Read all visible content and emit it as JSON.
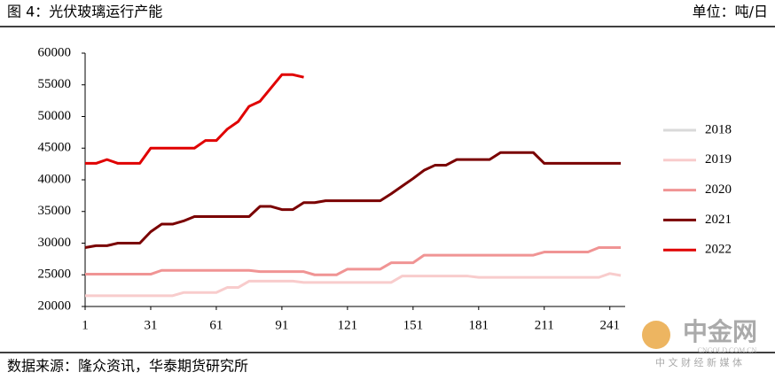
{
  "header": {
    "title": "图 4：光伏玻璃运行产能",
    "unit": "单位：吨/日"
  },
  "footer": {
    "source": "数据来源：隆众资讯，华泰期货研究所"
  },
  "watermark": {
    "name": "中金网",
    "domain": "CNGOLD.COM.CN",
    "slogan": "中 文 财 经 新 媒 体"
  },
  "chart_data": {
    "type": "line",
    "x": [
      1,
      6,
      11,
      16,
      21,
      26,
      31,
      36,
      41,
      46,
      51,
      56,
      61,
      66,
      71,
      76,
      81,
      86,
      91,
      96,
      101,
      106,
      111,
      116,
      121,
      126,
      131,
      136,
      141,
      146,
      151,
      156,
      161,
      166,
      171,
      176,
      181,
      186,
      191,
      196,
      201,
      206,
      211,
      216,
      221,
      226,
      231,
      236,
      241,
      246
    ],
    "xlim": [
      1,
      248
    ],
    "xticks": [
      1,
      31,
      61,
      91,
      121,
      151,
      181,
      211,
      241
    ],
    "ylim": [
      20000,
      60000
    ],
    "yticks": [
      20000,
      25000,
      30000,
      35000,
      40000,
      45000,
      50000,
      55000,
      60000
    ],
    "legend": "right",
    "series": [
      {
        "name": "2018",
        "color": "#d9d9d9",
        "values": [
          null,
          null,
          null,
          null,
          null,
          null,
          null,
          null,
          null,
          null,
          null,
          null,
          null,
          null,
          null,
          null,
          null,
          null,
          null,
          null,
          null,
          null,
          null,
          null,
          null,
          null,
          null,
          null,
          null,
          null,
          null,
          null,
          null,
          null,
          null,
          null,
          null,
          null,
          null,
          null,
          null,
          null,
          null,
          null,
          null,
          null,
          null,
          null,
          null,
          null
        ]
      },
      {
        "name": "2019",
        "color": "#f8cccc",
        "values": [
          21700,
          21700,
          21700,
          21700,
          21700,
          21700,
          21700,
          21700,
          21700,
          22200,
          22200,
          22200,
          22200,
          23000,
          23000,
          24000,
          24000,
          24000,
          24000,
          24000,
          23800,
          23800,
          23800,
          23800,
          23800,
          23800,
          23800,
          23800,
          23800,
          24800,
          24800,
          24800,
          24800,
          24800,
          24800,
          24800,
          24600,
          24600,
          24600,
          24600,
          24600,
          24600,
          24600,
          24600,
          24600,
          24600,
          24600,
          24600,
          25200,
          24900
        ]
      },
      {
        "name": "2020",
        "color": "#f09494",
        "values": [
          25100,
          25100,
          25100,
          25100,
          25100,
          25100,
          25100,
          25700,
          25700,
          25700,
          25700,
          25700,
          25700,
          25700,
          25700,
          25700,
          25500,
          25500,
          25500,
          25500,
          25500,
          25000,
          25000,
          25000,
          25900,
          25900,
          25900,
          25900,
          26900,
          26900,
          26900,
          28100,
          28100,
          28100,
          28100,
          28100,
          28100,
          28100,
          28100,
          28100,
          28100,
          28100,
          28600,
          28600,
          28600,
          28600,
          28600,
          29300,
          29300,
          29300
        ]
      },
      {
        "name": "2021",
        "color": "#7a0000",
        "values": [
          29300,
          29600,
          29600,
          30000,
          30000,
          30000,
          31800,
          33000,
          33000,
          33500,
          34200,
          34200,
          34200,
          34200,
          34200,
          34200,
          35800,
          35800,
          35300,
          35300,
          36400,
          36400,
          36700,
          36700,
          36700,
          36700,
          36700,
          36700,
          37800,
          39000,
          40200,
          41500,
          42300,
          42300,
          43200,
          43200,
          43200,
          43200,
          44300,
          44300,
          44300,
          44300,
          42600,
          42600,
          42600,
          42600,
          42600,
          42600,
          42600,
          42600
        ]
      },
      {
        "name": "2022",
        "color": "#e00000",
        "values": [
          42600,
          42600,
          43200,
          42600,
          42600,
          42600,
          45000,
          45000,
          45000,
          45000,
          45000,
          46200,
          46200,
          48000,
          49200,
          51600,
          52400,
          54500,
          56600,
          56600,
          56200,
          null,
          null,
          null,
          null,
          null,
          null,
          null,
          null,
          null,
          null,
          null,
          null,
          null,
          null,
          null,
          null,
          null,
          null,
          null,
          null,
          null,
          null,
          null,
          null,
          null,
          null,
          null,
          null,
          null
        ]
      }
    ]
  }
}
